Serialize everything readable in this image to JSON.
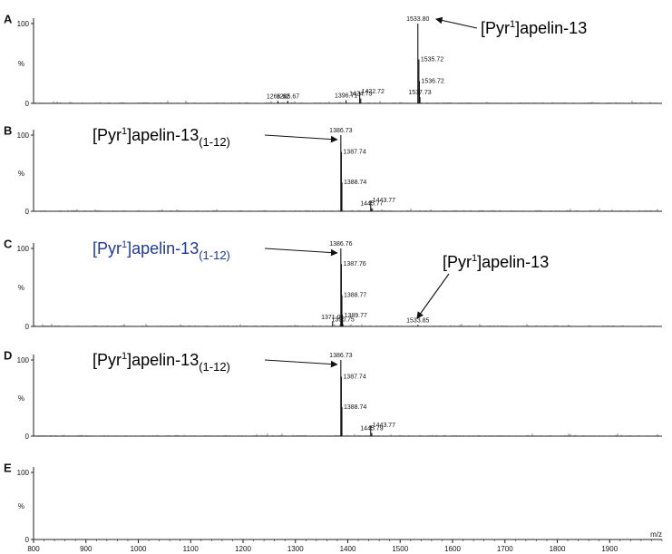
{
  "chart_data": {
    "type": "line",
    "xlabel": "m/z",
    "xlim": [
      800,
      2000
    ],
    "x_ticks": [
      800,
      900,
      1000,
      1100,
      1200,
      1300,
      1400,
      1500,
      1600,
      1700,
      1800,
      1900
    ],
    "y_ticks": [
      0,
      100
    ],
    "ylabel": "%",
    "ylim": [
      0,
      100
    ],
    "panels": [
      {
        "label": "A",
        "peaks": [
          {
            "x": 1266.62,
            "y": 3,
            "label": "1266.62"
          },
          {
            "x": 1285.67,
            "y": 3,
            "label": "1285.67"
          },
          {
            "x": 1396.71,
            "y": 4,
            "label": "1396.71"
          },
          {
            "x": 1422.72,
            "y": 15,
            "label": "1422.72"
          },
          {
            "x": 1424.73,
            "y": 6,
            "label": "1424.73"
          },
          {
            "x": 1533.8,
            "y": 100,
            "label": "1533.80"
          },
          {
            "x": 1535.72,
            "y": 55,
            "label": "1535.72"
          },
          {
            "x": 1536.72,
            "y": 28,
            "label": "1536.72"
          },
          {
            "x": 1537.73,
            "y": 8,
            "label": "1537.73"
          }
        ],
        "annotations": [
          {
            "text": "[Pyr",
            "sup": "1",
            "after": "]apelin-13",
            "sub": "",
            "points_to": 1533.8,
            "color": "#000000"
          }
        ]
      },
      {
        "label": "B",
        "peaks": [
          {
            "x": 1386.73,
            "y": 100,
            "label": "1386.73"
          },
          {
            "x": 1387.74,
            "y": 78,
            "label": "1387.74"
          },
          {
            "x": 1388.74,
            "y": 38,
            "label": "1388.74"
          },
          {
            "x": 1443.77,
            "y": 14,
            "label": "1443.77"
          },
          {
            "x": 1445.77,
            "y": 4,
            "label": "1445.77"
          }
        ],
        "annotations": [
          {
            "text": "[Pyr",
            "sup": "1",
            "after": "]apelin-13",
            "sub": "(1-12)",
            "points_to": 1386.73,
            "color": "#000000"
          }
        ]
      },
      {
        "label": "C",
        "peaks": [
          {
            "x": 1371.01,
            "y": 6,
            "label": "1371.01"
          },
          {
            "x": 1386.76,
            "y": 100,
            "label": "1386.76"
          },
          {
            "x": 1387.76,
            "y": 80,
            "label": "1387.76"
          },
          {
            "x": 1388.77,
            "y": 40,
            "label": "1388.77"
          },
          {
            "x": 1389.77,
            "y": 14,
            "label": "1389.77"
          },
          {
            "x": 1390.75,
            "y": 3,
            "label": "1390.75"
          },
          {
            "x": 1533.85,
            "y": 2,
            "label": "1533.85"
          }
        ],
        "annotations": [
          {
            "text": "[Pyr",
            "sup": "1",
            "after": "]apelin-13",
            "sub": "(1-12)",
            "points_to": 1386.76,
            "color": "#1f3a93"
          },
          {
            "text": "[Pyr",
            "sup": "1",
            "after": "]apelin-13",
            "sub": "",
            "points_to": 1533.85,
            "color": "#000000"
          }
        ]
      },
      {
        "label": "D",
        "peaks": [
          {
            "x": 1386.73,
            "y": 100,
            "label": "1386.73"
          },
          {
            "x": 1387.74,
            "y": 78,
            "label": "1387.74"
          },
          {
            "x": 1388.74,
            "y": 38,
            "label": "1388.74"
          },
          {
            "x": 1443.77,
            "y": 14,
            "label": "1443.77"
          },
          {
            "x": 1445.79,
            "y": 4,
            "label": "1445.79"
          }
        ],
        "annotations": [
          {
            "text": "[Pyr",
            "sup": "1",
            "after": "]apelin-13",
            "sub": "(1-12)",
            "points_to": 1386.73,
            "color": "#000000"
          }
        ]
      },
      {
        "label": "E",
        "peaks": [],
        "annotations": []
      }
    ]
  }
}
